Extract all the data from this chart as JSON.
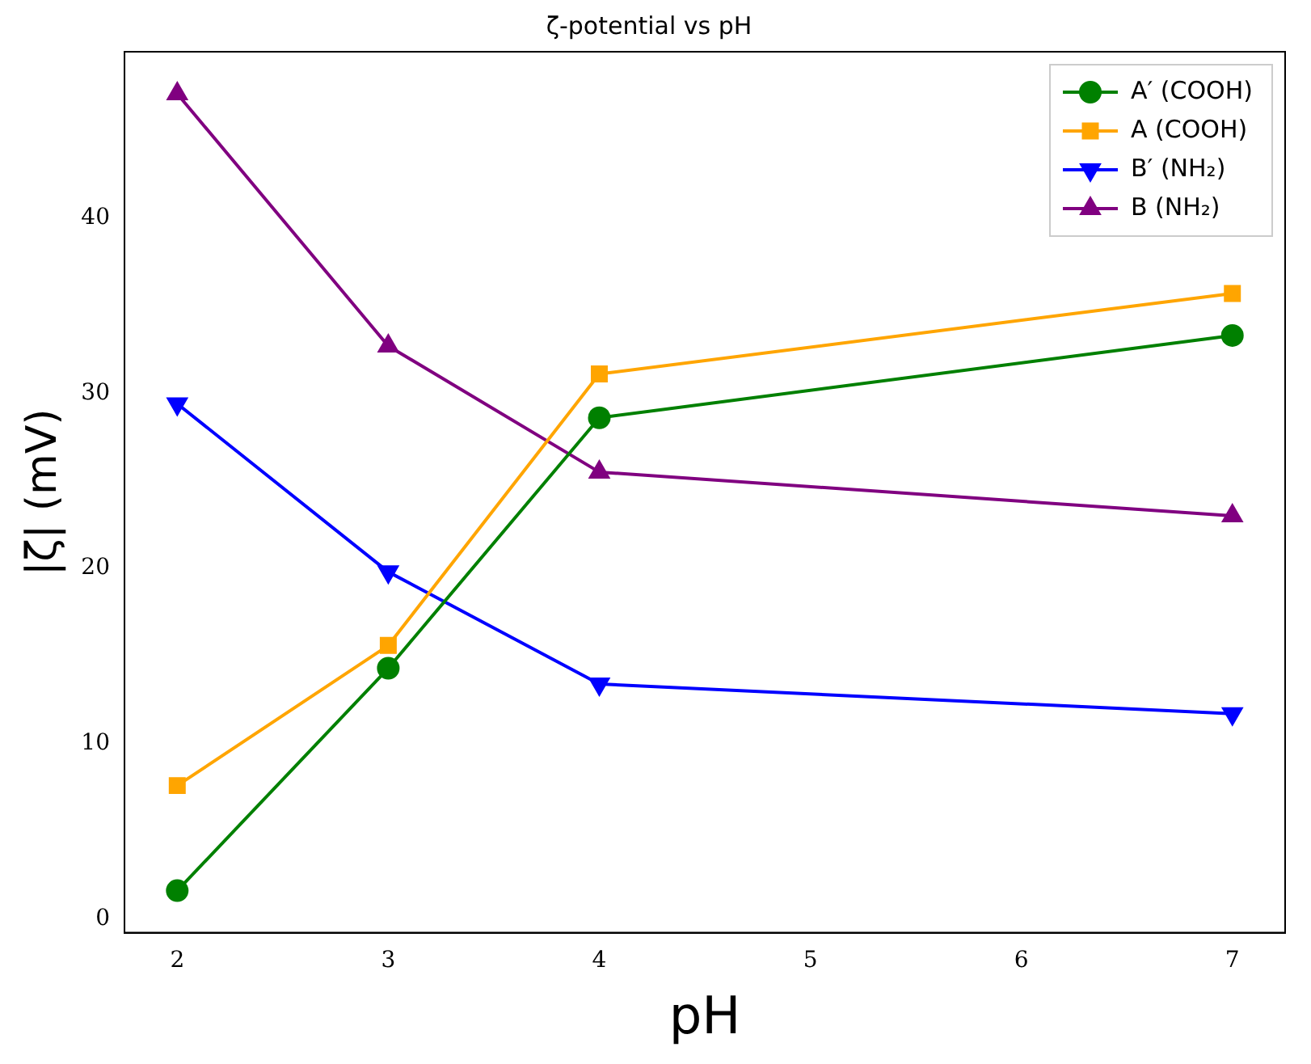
{
  "chart_data": {
    "type": "line",
    "title": "ζ-potential vs pH",
    "xlabel": "pH",
    "ylabel": "|ζ| (mV)",
    "x": [
      2,
      3,
      4,
      7
    ],
    "series": [
      {
        "name": "A′ (COOH)",
        "color": "#008000",
        "marker": "circle",
        "values": [
          1.6,
          14.3,
          28.6,
          33.3
        ]
      },
      {
        "name": "A (COOH)",
        "color": "#ffa500",
        "marker": "square",
        "values": [
          7.6,
          15.6,
          31.1,
          35.7
        ]
      },
      {
        "name": "B′ (NH₂)",
        "color": "#0000ff",
        "marker": "triangle-down",
        "values": [
          29.4,
          19.8,
          13.4,
          11.7
        ]
      },
      {
        "name": "B (NH₂)",
        "color": "#800080",
        "marker": "triangle",
        "values": [
          47.1,
          32.7,
          25.5,
          23.0
        ]
      }
    ],
    "xlim": [
      1.75,
      7.25
    ],
    "xticks": [
      2,
      3,
      4,
      5,
      6,
      7
    ],
    "ylim": [
      -0.8,
      49.5
    ],
    "yticks": [
      0,
      10,
      20,
      30,
      40
    ],
    "grid": false,
    "legend": "top right",
    "line_style": "solid"
  }
}
